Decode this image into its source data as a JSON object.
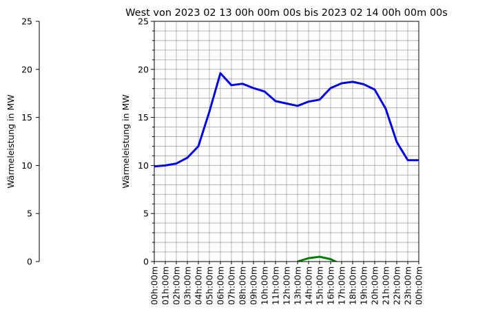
{
  "chart_data": {
    "type": "line",
    "title": "West von 2023 02 13 00h 00m 00s bis 2023 02 14 00h 00m 00s",
    "ylabel": "Wärmeleistung in MW",
    "left_axis_label": "Wärmeleistung in MW",
    "ylim": [
      0,
      25
    ],
    "yticks": [
      "0",
      "5",
      "10",
      "15",
      "20",
      "25"
    ],
    "left_yticks": [
      "0",
      "5",
      "10",
      "15",
      "20",
      "25"
    ],
    "x": [
      0,
      1,
      2,
      3,
      4,
      5,
      6,
      7,
      8,
      9,
      10,
      11,
      12,
      13,
      14,
      15,
      16,
      17,
      18,
      19,
      20,
      21,
      22,
      23,
      24
    ],
    "xlim": [
      0,
      24
    ],
    "xtick_labels": [
      "00h:00m",
      "01h:00m",
      "02h:00m",
      "03h:00m",
      "04h:00m",
      "05h:00m",
      "06h:00m",
      "07h:00m",
      "08h:00m",
      "09h:00m",
      "10h:00m",
      "11h:00m",
      "12h:00m",
      "13h:00m",
      "14h:00m",
      "15h:00m",
      "16h:00m",
      "17h:00m",
      "18h:00m",
      "19h:00m",
      "20h:00m",
      "21h:00m",
      "22h:00m",
      "23h:00m",
      "00h:00m"
    ],
    "grid": true,
    "series": [
      {
        "color": "#0000ee",
        "x": [
          0,
          1,
          2,
          3,
          4,
          5,
          6,
          7,
          8,
          9,
          10,
          11,
          12,
          13,
          14,
          15,
          16,
          17,
          18,
          19,
          20,
          21,
          22,
          23,
          24
        ],
        "values": [
          9.9,
          10.0,
          10.2,
          10.8,
          12.0,
          15.6,
          19.6,
          18.35,
          18.5,
          18.05,
          17.7,
          16.7,
          16.45,
          16.2,
          16.65,
          16.85,
          18.05,
          18.55,
          18.7,
          18.45,
          17.9,
          15.9,
          12.45,
          10.55,
          10.55
        ]
      },
      {
        "color": "#008000",
        "x": [
          13,
          14,
          15,
          16,
          17
        ],
        "values": [
          0.0,
          0.35,
          0.5,
          0.25,
          -0.3
        ]
      }
    ]
  }
}
